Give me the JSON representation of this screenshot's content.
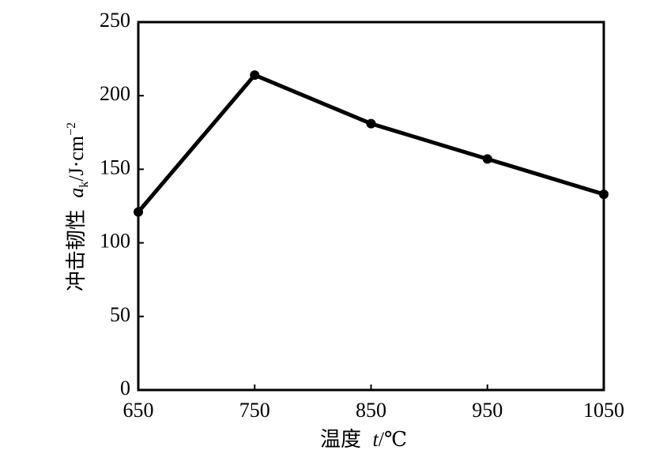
{
  "chart_data": {
    "type": "line",
    "xlabel": {
      "text": "温度",
      "symbol": "t",
      "unit": "/℃"
    },
    "ylabel": {
      "text": "冲击韧性",
      "symbol": "a",
      "sub": "k",
      "unit": "/J·cm",
      "sup": "−2"
    },
    "x": [
      650,
      750,
      850,
      950,
      1050
    ],
    "series": [
      {
        "color": "#000000",
        "values": [
          121,
          214,
          181,
          157,
          133
        ]
      }
    ],
    "xlim": [
      650,
      1050
    ],
    "xticks": [
      650,
      750,
      850,
      950,
      1050
    ],
    "ylim": [
      0,
      250
    ],
    "yticks": [
      0,
      50,
      100,
      150,
      200,
      250
    ]
  }
}
